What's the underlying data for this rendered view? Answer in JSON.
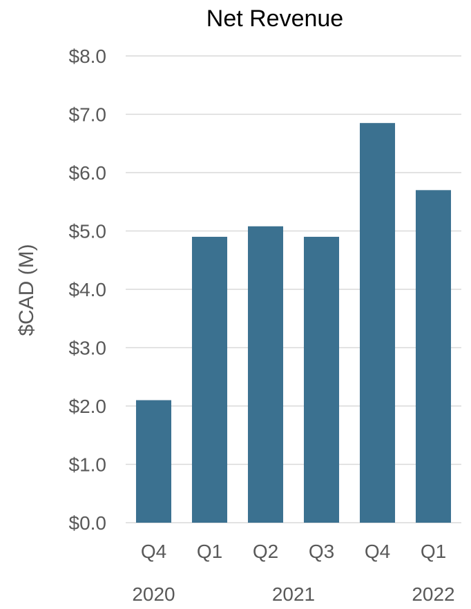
{
  "chart_data": {
    "type": "bar",
    "title": "Net Revenue",
    "ylabel": "$CAD (M)",
    "xlabel": "",
    "ylim": [
      0,
      8
    ],
    "yticks": [
      "$0.0",
      "$1.0",
      "$2.0",
      "$3.0",
      "$4.0",
      "$5.0",
      "$6.0",
      "$7.0",
      "$8.0"
    ],
    "categories": [
      "Q4",
      "Q1",
      "Q2",
      "Q3",
      "Q4",
      "Q1"
    ],
    "values": [
      2.1,
      4.9,
      5.08,
      4.9,
      6.85,
      5.7
    ],
    "groups": [
      {
        "label": "2020",
        "start": 0,
        "end": 0
      },
      {
        "label": "2021",
        "start": 1,
        "end": 4
      },
      {
        "label": "2022",
        "start": 5,
        "end": 5
      }
    ],
    "grid": true,
    "bar_color": "#3b7190"
  }
}
